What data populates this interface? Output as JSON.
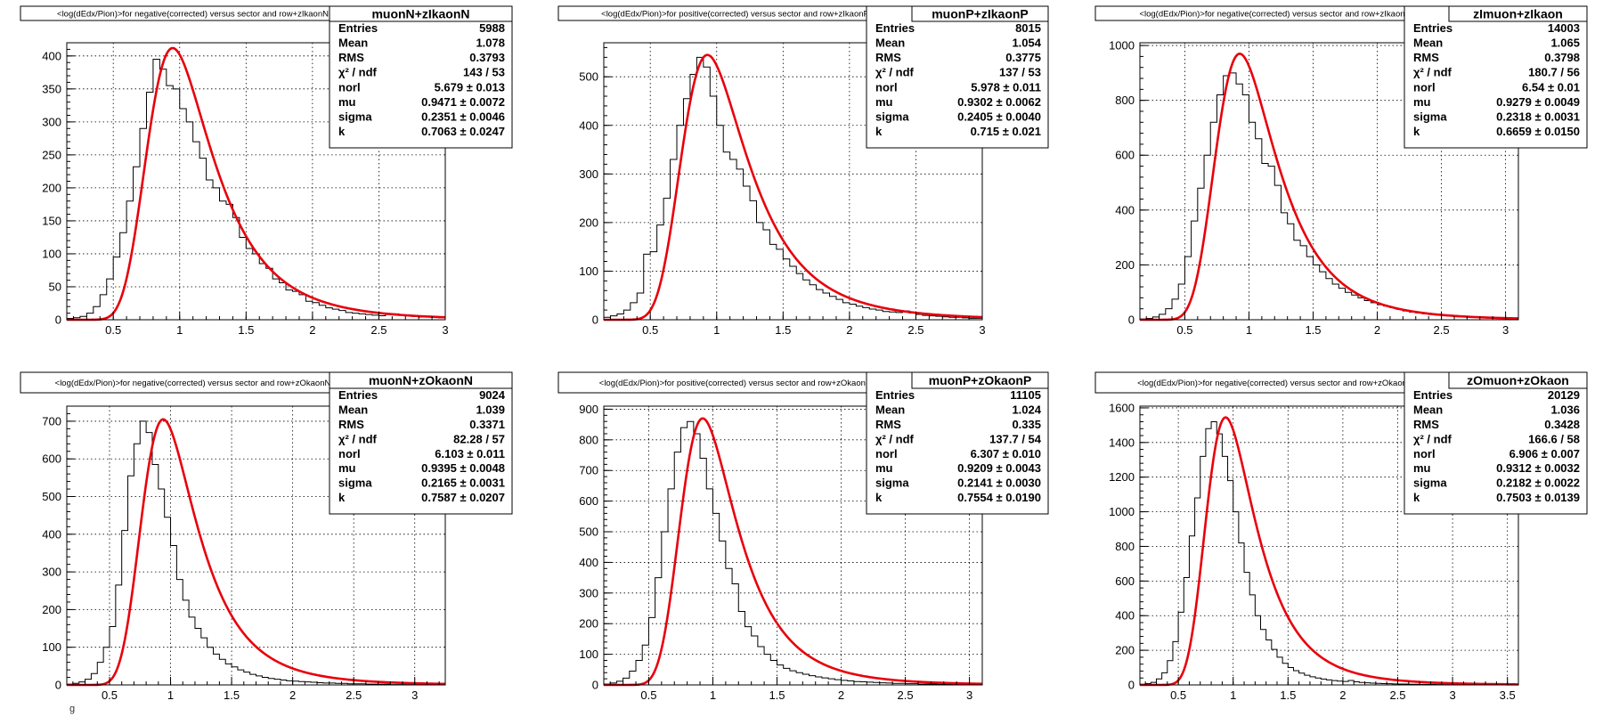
{
  "figure": {
    "footer_mark": "g"
  },
  "chart_data": [
    {
      "type": "histogram",
      "title": "<log(dEdx/Pion)>for negative(corrected) versus sector and row+zIkaonN",
      "stats": {
        "name": "muonN+zIkaonN",
        "rows": [
          {
            "label": "Entries",
            "value": "5988"
          },
          {
            "label": "Mean",
            "value": "1.078"
          },
          {
            "label": "RMS",
            "value": "0.3793"
          },
          {
            "label": "χ² / ndf",
            "value": "143 / 53"
          },
          {
            "label": "norl",
            "value": "5.679 ± 0.013"
          },
          {
            "label": "mu",
            "value": "0.9471 ± 0.0072"
          },
          {
            "label": "sigma",
            "value": "0.2351 ± 0.0046"
          },
          {
            "label": "k",
            "value": "0.7063 ± 0.0247"
          }
        ]
      },
      "xlim": [
        0.15,
        3.0
      ],
      "ylim": [
        0,
        420
      ],
      "xticks": [
        0.5,
        1,
        1.5,
        2,
        2.5,
        3
      ],
      "xtick_labels": [
        "0.5",
        "1",
        "1.5",
        "2",
        "2.5",
        "3"
      ],
      "yticks": [
        0,
        50,
        100,
        150,
        200,
        250,
        300,
        350,
        400
      ],
      "ytick_labels": [
        "0",
        "50",
        "100",
        "150",
        "200",
        "250",
        "300",
        "350",
        "400"
      ],
      "fit": {
        "peak": 412,
        "mu": 0.9471,
        "sigma": 0.2351,
        "k": 0.7063
      },
      "hist": {
        "x0": 0.15,
        "bin_width": 0.05,
        "counts": [
          2,
          3,
          5,
          10,
          20,
          38,
          62,
          95,
          132,
          180,
          232,
          290,
          345,
          395,
          380,
          355,
          350,
          320,
          300,
          270,
          245,
          212,
          200,
          180,
          175,
          155,
          125,
          108,
          100,
          85,
          78,
          62,
          56,
          45,
          43,
          38,
          28,
          26,
          22,
          18,
          16,
          14,
          11,
          10,
          9,
          8,
          7,
          6,
          8,
          9,
          7,
          6,
          5,
          4,
          5,
          4,
          3
        ]
      },
      "grid": true
    },
    {
      "type": "histogram",
      "title": "<log(dEdx/Pion)>for positive(corrected) versus sector and row+zIkaonP",
      "stats": {
        "name": "muonP+zIkaonP",
        "rows": [
          {
            "label": "Entries",
            "value": "8015"
          },
          {
            "label": "Mean",
            "value": "1.054"
          },
          {
            "label": "RMS",
            "value": "0.3775"
          },
          {
            "label": "χ² / ndf",
            "value": "137 / 53"
          },
          {
            "label": "norl",
            "value": "5.978 ± 0.011"
          },
          {
            "label": "mu",
            "value": "0.9302 ± 0.0062"
          },
          {
            "label": "sigma",
            "value": "0.2405 ± 0.0040"
          },
          {
            "label": "k",
            "value": "0.715 ± 0.021"
          }
        ]
      },
      "xlim": [
        0.15,
        3.0
      ],
      "ylim": [
        0,
        570
      ],
      "xticks": [
        0.5,
        1,
        1.5,
        2,
        2.5,
        3
      ],
      "xtick_labels": [
        "0.5",
        "1",
        "1.5",
        "2",
        "2.5",
        "3"
      ],
      "yticks": [
        0,
        100,
        200,
        300,
        400,
        500
      ],
      "ytick_labels": [
        "0",
        "100",
        "200",
        "300",
        "400",
        "500"
      ],
      "fit": {
        "peak": 545,
        "mu": 0.9302,
        "sigma": 0.2405,
        "k": 0.715
      },
      "hist": {
        "x0": 0.15,
        "bin_width": 0.05,
        "counts": [
          5,
          8,
          12,
          20,
          35,
          55,
          135,
          140,
          195,
          250,
          330,
          400,
          455,
          505,
          540,
          520,
          460,
          400,
          345,
          330,
          310,
          275,
          245,
          200,
          185,
          155,
          145,
          125,
          110,
          95,
          82,
          72,
          62,
          55,
          48,
          42,
          35,
          32,
          28,
          25,
          22,
          20,
          17,
          16,
          15,
          18,
          14,
          11,
          9,
          8,
          7,
          6,
          5,
          5,
          4,
          3,
          3
        ]
      },
      "grid": true
    },
    {
      "type": "histogram",
      "title": "<log(dEdx/Pion)>for negative(corrected) versus sector and row+zIkaon",
      "stats": {
        "name": "zImuon+zIkaon",
        "rows": [
          {
            "label": "Entries",
            "value": "14003"
          },
          {
            "label": "Mean",
            "value": "1.065"
          },
          {
            "label": "RMS",
            "value": "0.3798"
          },
          {
            "label": "χ² / ndf",
            "value": "180.7 / 56"
          },
          {
            "label": "norl",
            "value": "6.54 ± 0.01"
          },
          {
            "label": "mu",
            "value": "0.9279 ± 0.0049"
          },
          {
            "label": "sigma",
            "value": "0.2318 ± 0.0031"
          },
          {
            "label": "k",
            "value": "0.6659 ± 0.0150"
          }
        ]
      },
      "xlim": [
        0.15,
        3.1
      ],
      "ylim": [
        0,
        1010
      ],
      "xticks": [
        0.5,
        1,
        1.5,
        2,
        2.5,
        3
      ],
      "xtick_labels": [
        "0.5",
        "1",
        "1.5",
        "2",
        "2.5",
        "3"
      ],
      "yticks": [
        0,
        200,
        400,
        600,
        800,
        1000
      ],
      "ytick_labels": [
        "0",
        "200",
        "400",
        "600",
        "800",
        "1000"
      ],
      "fit": {
        "peak": 970,
        "mu": 0.9279,
        "sigma": 0.2318,
        "k": 0.6659
      },
      "hist": {
        "x0": 0.15,
        "bin_width": 0.05,
        "counts": [
          3,
          5,
          10,
          20,
          40,
          75,
          130,
          230,
          360,
          480,
          600,
          720,
          820,
          890,
          900,
          860,
          820,
          720,
          660,
          570,
          560,
          490,
          390,
          350,
          290,
          270,
          230,
          200,
          175,
          150,
          130,
          115,
          100,
          90,
          80,
          70,
          62,
          55,
          50,
          44,
          38,
          32,
          28,
          25,
          22,
          19,
          17,
          15,
          13,
          11,
          10,
          9,
          8,
          7,
          6,
          5,
          5,
          4,
          4
        ]
      },
      "grid": true
    },
    {
      "type": "histogram",
      "title": "<log(dEdx/Pion)>for negative(corrected) versus sector and row+zOkaonN",
      "stats": {
        "name": "muonN+zOkaonN",
        "rows": [
          {
            "label": "Entries",
            "value": "9024"
          },
          {
            "label": "Mean",
            "value": "1.039"
          },
          {
            "label": "RMS",
            "value": "0.3371"
          },
          {
            "label": "χ² / ndf",
            "value": "82.28 / 57"
          },
          {
            "label": "norl",
            "value": "6.103 ± 0.011"
          },
          {
            "label": "mu",
            "value": "0.9395 ± 0.0048"
          },
          {
            "label": "sigma",
            "value": "0.2165 ± 0.0031"
          },
          {
            "label": "k",
            "value": "0.7587 ± 0.0207"
          }
        ]
      },
      "xlim": [
        0.15,
        3.25
      ],
      "ylim": [
        0,
        740
      ],
      "xticks": [
        0.5,
        1,
        1.5,
        2,
        2.5,
        3
      ],
      "xtick_labels": [
        "0.5",
        "1",
        "1.5",
        "2",
        "2.5",
        "3"
      ],
      "yticks": [
        0,
        100,
        200,
        300,
        400,
        500,
        600,
        700
      ],
      "ytick_labels": [
        "0",
        "100",
        "200",
        "300",
        "400",
        "500",
        "600",
        "700"
      ],
      "fit": {
        "peak": 705,
        "mu": 0.9395,
        "sigma": 0.2165,
        "k": 0.7587
      },
      "hist": {
        "x0": 0.15,
        "bin_width": 0.05,
        "counts": [
          2,
          4,
          8,
          15,
          30,
          60,
          100,
          155,
          265,
          410,
          555,
          640,
          700,
          670,
          585,
          520,
          445,
          370,
          280,
          225,
          180,
          150,
          125,
          100,
          82,
          68,
          56,
          48,
          40,
          34,
          28,
          24,
          20,
          17,
          15,
          13,
          11,
          10,
          9,
          8,
          7,
          6,
          5,
          5,
          4,
          4,
          3,
          3,
          3,
          2,
          2,
          2,
          2,
          1,
          1,
          1,
          1,
          1,
          1,
          1,
          1,
          1
        ]
      },
      "grid": true
    },
    {
      "type": "histogram",
      "title": "<log(dEdx/Pion)>for positive(corrected) versus sector and row+zOkaonP",
      "stats": {
        "name": "muonP+zOkaonP",
        "rows": [
          {
            "label": "Entries",
            "value": "11105"
          },
          {
            "label": "Mean",
            "value": "1.024"
          },
          {
            "label": "RMS",
            "value": "0.335"
          },
          {
            "label": "χ² / ndf",
            "value": "137.7 / 54"
          },
          {
            "label": "norl",
            "value": "6.307 ± 0.010"
          },
          {
            "label": "mu",
            "value": "0.9209 ± 0.0043"
          },
          {
            "label": "sigma",
            "value": "0.2141 ± 0.0030"
          },
          {
            "label": "k",
            "value": "0.7554 ± 0.0190"
          }
        ]
      },
      "xlim": [
        0.15,
        3.1
      ],
      "ylim": [
        0,
        910
      ],
      "xticks": [
        0.5,
        1,
        1.5,
        2,
        2.5,
        3
      ],
      "xtick_labels": [
        "0.5",
        "1",
        "1.5",
        "2",
        "2.5",
        "3"
      ],
      "yticks": [
        0,
        100,
        200,
        300,
        400,
        500,
        600,
        700,
        800,
        900
      ],
      "ytick_labels": [
        "0",
        "100",
        "200",
        "300",
        "400",
        "500",
        "600",
        "700",
        "800",
        "900"
      ],
      "fit": {
        "peak": 870,
        "mu": 0.9209,
        "sigma": 0.2141,
        "k": 0.7554
      },
      "hist": {
        "x0": 0.15,
        "bin_width": 0.05,
        "counts": [
          3,
          6,
          12,
          22,
          45,
          80,
          130,
          220,
          350,
          500,
          640,
          760,
          840,
          860,
          820,
          740,
          640,
          560,
          470,
          380,
          330,
          240,
          190,
          160,
          125,
          100,
          80,
          65,
          54,
          46,
          40,
          35,
          30,
          26,
          23,
          20,
          17,
          15,
          13,
          11,
          10,
          9,
          8,
          7,
          6,
          5,
          5,
          4,
          4,
          3,
          3,
          3,
          2,
          2,
          2,
          2,
          1,
          1,
          1
        ]
      },
      "grid": true
    },
    {
      "type": "histogram",
      "title": "<log(dEdx/Pion)>for negative(corrected) versus sector and row+zOkaon",
      "stats": {
        "name": "zOmuon+zOkaon",
        "rows": [
          {
            "label": "Entries",
            "value": "20129"
          },
          {
            "label": "Mean",
            "value": "1.036"
          },
          {
            "label": "RMS",
            "value": "0.3428"
          },
          {
            "label": "χ² / ndf",
            "value": "166.6 / 58"
          },
          {
            "label": "norl",
            "value": "6.906 ± 0.007"
          },
          {
            "label": "mu",
            "value": "0.9312 ± 0.0032"
          },
          {
            "label": "sigma",
            "value": "0.2182 ± 0.0022"
          },
          {
            "label": "k",
            "value": "0.7503 ± 0.0139"
          }
        ]
      },
      "xlim": [
        0.15,
        3.6
      ],
      "ylim": [
        0,
        1610
      ],
      "xticks": [
        0.5,
        1,
        1.5,
        2,
        2.5,
        3,
        3.5
      ],
      "xtick_labels": [
        "0.5",
        "1",
        "1.5",
        "2",
        "2.5",
        "3",
        "3.5"
      ],
      "yticks": [
        0,
        200,
        400,
        600,
        800,
        1000,
        1200,
        1400,
        1600
      ],
      "ytick_labels": [
        "0",
        "200",
        "400",
        "600",
        "800",
        "1000",
        "1200",
        "1400",
        "1600"
      ],
      "fit": {
        "peak": 1545,
        "mu": 0.9312,
        "sigma": 0.2182,
        "k": 0.7503
      },
      "hist": {
        "x0": 0.15,
        "bin_width": 0.05,
        "counts": [
          4,
          8,
          15,
          35,
          70,
          140,
          250,
          420,
          620,
          860,
          1080,
          1320,
          1480,
          1520,
          1450,
          1320,
          1180,
          1000,
          820,
          650,
          520,
          400,
          320,
          260,
          205,
          160,
          125,
          100,
          82,
          68,
          56,
          47,
          40,
          34,
          29,
          25,
          22,
          20,
          26,
          18,
          14,
          12,
          10,
          9,
          8,
          7,
          6,
          5,
          5,
          4,
          4,
          3,
          3,
          3,
          2,
          2,
          2,
          2,
          2,
          2,
          1,
          1,
          1,
          1,
          1,
          1,
          1,
          1,
          1
        ]
      },
      "grid": true
    }
  ]
}
